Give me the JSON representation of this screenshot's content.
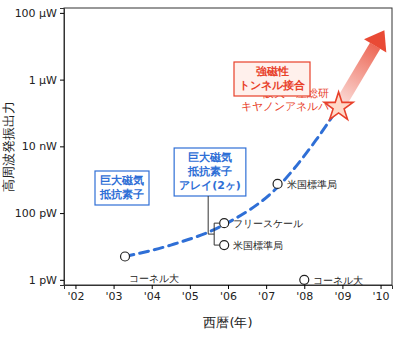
{
  "chart_data": {
    "type": "scatter",
    "x_label": "西暦(年)",
    "y_label": "高周波発振出力",
    "log": "y",
    "grid": false,
    "xlim": [
      2001.7,
      2010.3
    ],
    "xticks": [
      {
        "value": 2002,
        "label": "'02"
      },
      {
        "value": 2003,
        "label": "'03"
      },
      {
        "value": 2004,
        "label": "'04"
      },
      {
        "value": 2005,
        "label": "'05"
      },
      {
        "value": 2006,
        "label": "'06"
      },
      {
        "value": 2007,
        "label": "'07"
      },
      {
        "value": 2008,
        "label": "'08"
      },
      {
        "value": 2009,
        "label": "'09"
      },
      {
        "value": 2010,
        "label": "'10"
      }
    ],
    "ylim": [
      7e-13,
      0.00014
    ],
    "yticks": [
      {
        "value": 1e-12,
        "label": "1 pW"
      },
      {
        "value": 1e-10,
        "label": "100 pW"
      },
      {
        "value": 1e-08,
        "label": "10 nW"
      },
      {
        "value": 1e-06,
        "label": "1 μW"
      },
      {
        "value": 0.0001,
        "label": "100 μW"
      }
    ],
    "series": [
      {
        "type": "line",
        "line_style": "dashed",
        "color": "#2f6fd6",
        "x": [
          2003.3,
          2004.5,
          2005.9,
          2007.3,
          2008.3,
          2008.9
        ],
        "values": [
          5e-12,
          1.1e-11,
          4.5e-11,
          6e-10,
          1.5e-08,
          1.5e-07
        ]
      },
      {
        "type": "arrow",
        "color": "#e8402a",
        "x": [
          2008.9,
          2010.1
        ],
        "values": [
          1.5e-07,
          3e-05
        ]
      },
      {
        "type": "scatter",
        "marker": "circle",
        "color": "#ffffff",
        "x": [
          2003.3,
          2005.9,
          2005.9,
          2007.3,
          2008.0
        ],
        "values": [
          5e-12,
          5e-11,
          1.1e-11,
          7.5e-10,
          1e-12
        ],
        "labels": [
          "コーネル大",
          "フリースケール",
          "米国標準局",
          "米国標準局",
          "コーネル大"
        ]
      },
      {
        "type": "scatter",
        "marker": "star",
        "color": "#e8402a",
        "x": [
          2008.9
        ],
        "values": [
          1.5e-07
        ],
        "labels": [
          [
            "阪大・産総研",
            "キヤノンアネルバ"
          ]
        ]
      }
    ],
    "annotations": [
      {
        "text": [
          "巨大磁気",
          "抵抗素子"
        ],
        "color": "#2f6fd6"
      },
      {
        "text": [
          "巨大磁気",
          "抵抗素子",
          "アレイ(2ヶ)"
        ],
        "color": "#2f6fd6"
      },
      {
        "text": [
          "強磁性",
          "トンネル接合"
        ],
        "color": "#e8402a"
      }
    ]
  }
}
